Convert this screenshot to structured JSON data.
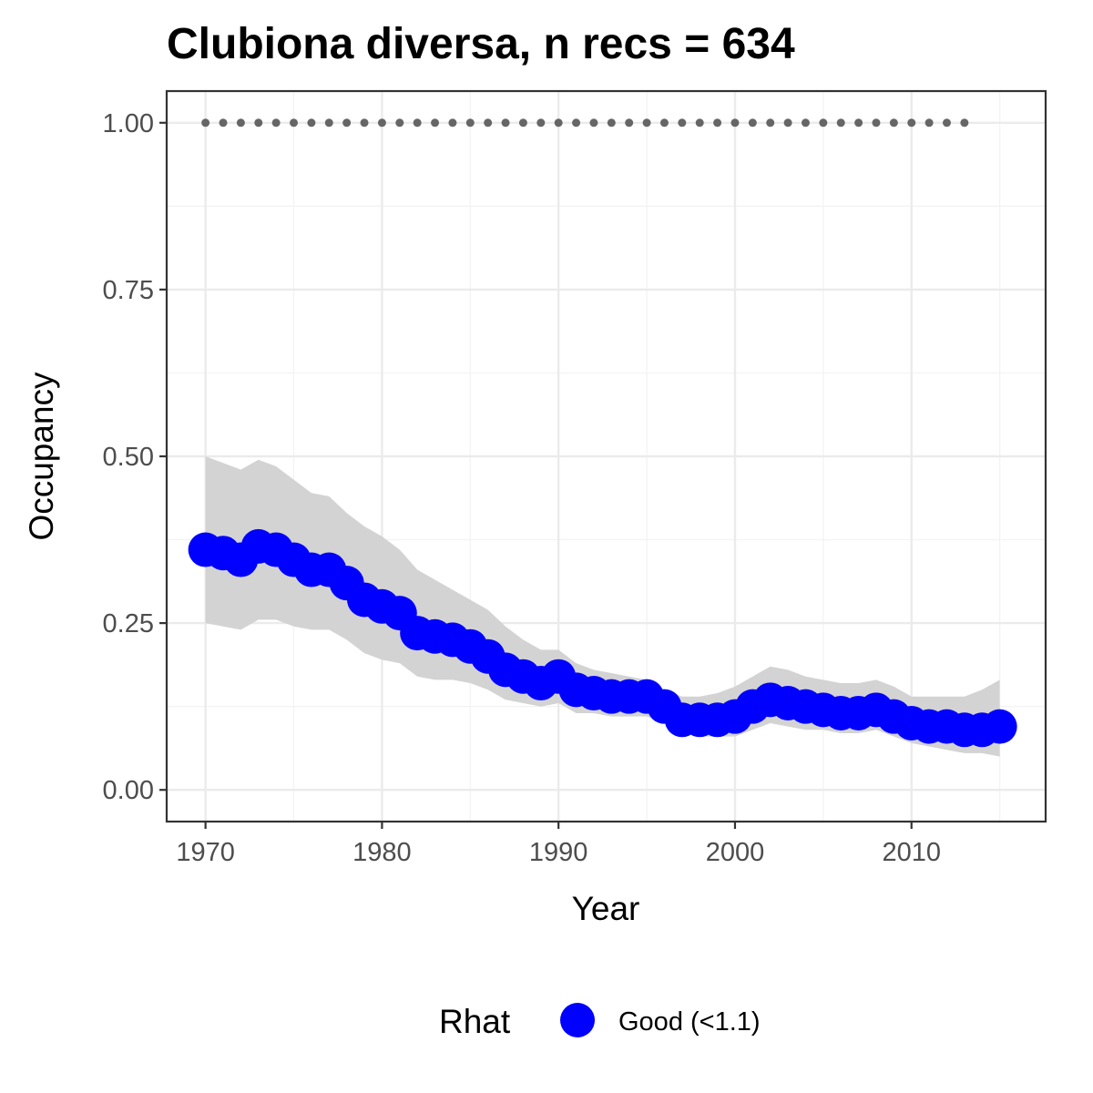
{
  "chart_data": {
    "type": "line",
    "title": "Clubiona diversa, n recs = 634",
    "xlabel": "Year",
    "ylabel": "Occupancy",
    "xlim": [
      1967.8,
      1917.6
    ],
    "ylim": [
      -0.0475,
      1.0475
    ],
    "x_ticks": [
      1970,
      1980,
      1990,
      2000,
      2010
    ],
    "x_tick_labels": [
      "1970",
      "1980",
      "1990",
      "2000",
      "2010"
    ],
    "y_ticks": [
      0,
      0.25,
      0.5,
      0.75,
      1.0
    ],
    "y_tick_labels": [
      "0.00",
      "0.25",
      "0.50",
      "0.75",
      "1.00"
    ],
    "grid": true,
    "x": [
      1970,
      1971,
      1972,
      1973,
      1974,
      1975,
      1976,
      1977,
      1978,
      1979,
      1980,
      1981,
      1982,
      1983,
      1984,
      1985,
      1986,
      1987,
      1988,
      1989,
      1990,
      1991,
      1992,
      1993,
      1994,
      1995,
      1996,
      1997,
      1998,
      1999,
      2000,
      2001,
      2002,
      2003,
      2004,
      2005,
      2006,
      2007,
      2008,
      2009,
      2010,
      2011,
      2012,
      2013,
      2014,
      2015
    ],
    "series": [
      {
        "name": "Good (<1.1)",
        "color": "#0000ff",
        "values": [
          0.36,
          0.355,
          0.345,
          0.365,
          0.36,
          0.345,
          0.33,
          0.33,
          0.31,
          0.285,
          0.275,
          0.265,
          0.235,
          0.23,
          0.225,
          0.215,
          0.2,
          0.18,
          0.17,
          0.16,
          0.17,
          0.15,
          0.145,
          0.14,
          0.14,
          0.14,
          0.125,
          0.105,
          0.105,
          0.105,
          0.11,
          0.125,
          0.135,
          0.13,
          0.125,
          0.12,
          0.115,
          0.115,
          0.12,
          0.11,
          0.1,
          0.095,
          0.095,
          0.09,
          0.09,
          0.095
        ]
      }
    ],
    "ci_upper": [
      0.5,
      0.49,
      0.48,
      0.495,
      0.485,
      0.465,
      0.445,
      0.44,
      0.415,
      0.395,
      0.38,
      0.36,
      0.33,
      0.315,
      0.3,
      0.285,
      0.27,
      0.245,
      0.225,
      0.21,
      0.21,
      0.19,
      0.18,
      0.175,
      0.17,
      0.165,
      0.15,
      0.14,
      0.14,
      0.145,
      0.155,
      0.17,
      0.185,
      0.18,
      0.17,
      0.165,
      0.16,
      0.16,
      0.165,
      0.155,
      0.14,
      0.14,
      0.14,
      0.14,
      0.15,
      0.165
    ],
    "ci_lower": [
      0.25,
      0.245,
      0.24,
      0.255,
      0.255,
      0.245,
      0.24,
      0.24,
      0.225,
      0.205,
      0.195,
      0.19,
      0.17,
      0.165,
      0.165,
      0.16,
      0.15,
      0.135,
      0.13,
      0.125,
      0.13,
      0.115,
      0.115,
      0.11,
      0.11,
      0.11,
      0.1,
      0.085,
      0.08,
      0.08,
      0.08,
      0.09,
      0.1,
      0.095,
      0.09,
      0.09,
      0.085,
      0.085,
      0.09,
      0.08,
      0.07,
      0.065,
      0.06,
      0.055,
      0.055,
      0.05
    ],
    "records_x": [
      1970,
      1971,
      1972,
      1973,
      1974,
      1975,
      1976,
      1977,
      1978,
      1979,
      1980,
      1981,
      1982,
      1983,
      1984,
      1985,
      1986,
      1987,
      1988,
      1989,
      1990,
      1991,
      1992,
      1993,
      1994,
      1995,
      1996,
      1997,
      1998,
      1999,
      2000,
      2001,
      2002,
      2003,
      2004,
      2005,
      2006,
      2007,
      2008,
      2009,
      2010,
      2011,
      2012,
      2013
    ],
    "records_y": 1.0,
    "legend": {
      "title": "Rhat",
      "position": "bottom",
      "entries": [
        {
          "label": "Good (<1.1)",
          "color": "#0000ff"
        }
      ]
    },
    "colors": {
      "ribbon": "#d3d3d3",
      "records": "#666666",
      "grid_major": "#ebebeb",
      "grid_minor": "#f2f2f2",
      "panel_border": "#333333"
    }
  }
}
